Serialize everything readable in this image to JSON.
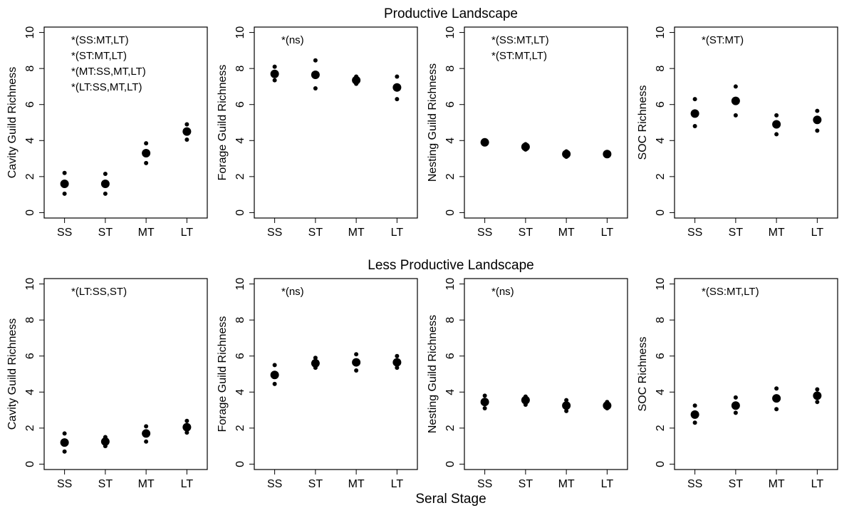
{
  "figure": {
    "row_titles": [
      "Productive Landscape",
      "Less Productive Landscape"
    ],
    "x_title": "Seral Stage"
  },
  "chart_data": [
    {
      "type": "scatter",
      "row": 0,
      "col": 0,
      "ylabel": "Cavity Guild Richness",
      "categories": [
        "SS",
        "ST",
        "MT",
        "LT"
      ],
      "ylim": [
        0,
        10
      ],
      "yticks": [
        0,
        2,
        4,
        6,
        8,
        10
      ],
      "annotations": [
        "*(SS:MT,LT)",
        "*(ST:MT,LT)",
        "*(MT:SS,MT,LT)",
        "*(LT:SS,MT,LT)"
      ],
      "series": [
        {
          "stat": "mean",
          "values": [
            1.6,
            1.6,
            3.3,
            4.5
          ]
        },
        {
          "stat": "upper",
          "values": [
            2.2,
            2.15,
            3.85,
            4.9
          ]
        },
        {
          "stat": "lower",
          "values": [
            1.05,
            1.05,
            2.75,
            4.05
          ]
        }
      ]
    },
    {
      "type": "scatter",
      "row": 0,
      "col": 1,
      "ylabel": "Forage Guild Richness",
      "categories": [
        "SS",
        "ST",
        "MT",
        "LT"
      ],
      "ylim": [
        0,
        10
      ],
      "yticks": [
        0,
        2,
        4,
        6,
        8,
        10
      ],
      "annotations": [
        "*(ns)"
      ],
      "series": [
        {
          "stat": "mean",
          "values": [
            7.7,
            7.65,
            7.35,
            6.95
          ]
        },
        {
          "stat": "upper",
          "values": [
            8.1,
            8.45,
            7.55,
            7.55
          ]
        },
        {
          "stat": "lower",
          "values": [
            7.35,
            6.9,
            7.15,
            6.3
          ]
        }
      ]
    },
    {
      "type": "scatter",
      "row": 0,
      "col": 2,
      "ylabel": "Nesting Guild Richness",
      "categories": [
        "SS",
        "ST",
        "MT",
        "LT"
      ],
      "ylim": [
        0,
        10
      ],
      "yticks": [
        0,
        2,
        4,
        6,
        8,
        10
      ],
      "annotations": [
        "*(SS:MT,LT)",
        "*(ST:MT,LT)"
      ],
      "series": [
        {
          "stat": "mean",
          "values": [
            3.9,
            3.65,
            3.25,
            3.25
          ]
        },
        {
          "stat": "upper",
          "values": [
            4.0,
            3.8,
            3.4,
            3.35
          ]
        },
        {
          "stat": "lower",
          "values": [
            3.8,
            3.5,
            3.1,
            3.15
          ]
        }
      ]
    },
    {
      "type": "scatter",
      "row": 0,
      "col": 3,
      "ylabel": "SOC Richness",
      "categories": [
        "SS",
        "ST",
        "MT",
        "LT"
      ],
      "ylim": [
        0,
        10
      ],
      "yticks": [
        0,
        2,
        4,
        6,
        8,
        10
      ],
      "annotations": [
        "*(ST:MT)"
      ],
      "series": [
        {
          "stat": "mean",
          "values": [
            5.5,
            6.2,
            4.9,
            5.15
          ]
        },
        {
          "stat": "upper",
          "values": [
            6.3,
            7.0,
            5.4,
            5.65
          ]
        },
        {
          "stat": "lower",
          "values": [
            4.8,
            5.4,
            4.35,
            4.55
          ]
        }
      ]
    },
    {
      "type": "scatter",
      "row": 1,
      "col": 0,
      "ylabel": "Cavity Guild Richness",
      "categories": [
        "SS",
        "ST",
        "MT",
        "LT"
      ],
      "ylim": [
        0,
        10
      ],
      "yticks": [
        0,
        2,
        4,
        6,
        8,
        10
      ],
      "annotations": [
        "*(LT:SS,ST)"
      ],
      "series": [
        {
          "stat": "mean",
          "values": [
            1.2,
            1.25,
            1.7,
            2.05
          ]
        },
        {
          "stat": "upper",
          "values": [
            1.7,
            1.5,
            2.1,
            2.4
          ]
        },
        {
          "stat": "lower",
          "values": [
            0.7,
            1.0,
            1.25,
            1.75
          ]
        }
      ]
    },
    {
      "type": "scatter",
      "row": 1,
      "col": 1,
      "ylabel": "Forage Guild Richness",
      "categories": [
        "SS",
        "ST",
        "MT",
        "LT"
      ],
      "ylim": [
        0,
        10
      ],
      "yticks": [
        0,
        2,
        4,
        6,
        8,
        10
      ],
      "annotations": [
        "*(ns)"
      ],
      "series": [
        {
          "stat": "mean",
          "values": [
            4.95,
            5.6,
            5.65,
            5.65
          ]
        },
        {
          "stat": "upper",
          "values": [
            5.5,
            5.9,
            6.1,
            6.0
          ]
        },
        {
          "stat": "lower",
          "values": [
            4.45,
            5.35,
            5.2,
            5.35
          ]
        }
      ]
    },
    {
      "type": "scatter",
      "row": 1,
      "col": 2,
      "ylabel": "Nesting Guild Richness",
      "categories": [
        "SS",
        "ST",
        "MT",
        "LT"
      ],
      "ylim": [
        0,
        10
      ],
      "yticks": [
        0,
        2,
        4,
        6,
        8,
        10
      ],
      "annotations": [
        "*(ns)"
      ],
      "series": [
        {
          "stat": "mean",
          "values": [
            3.45,
            3.55,
            3.25,
            3.25
          ]
        },
        {
          "stat": "upper",
          "values": [
            3.8,
            3.75,
            3.55,
            3.45
          ]
        },
        {
          "stat": "lower",
          "values": [
            3.1,
            3.3,
            2.95,
            3.1
          ]
        }
      ]
    },
    {
      "type": "scatter",
      "row": 1,
      "col": 3,
      "ylabel": "SOC Richness",
      "categories": [
        "SS",
        "ST",
        "MT",
        "LT"
      ],
      "ylim": [
        0,
        10
      ],
      "yticks": [
        0,
        2,
        4,
        6,
        8,
        10
      ],
      "annotations": [
        "*(SS:MT,LT)"
      ],
      "series": [
        {
          "stat": "mean",
          "values": [
            2.75,
            3.25,
            3.65,
            3.8
          ]
        },
        {
          "stat": "upper",
          "values": [
            3.25,
            3.7,
            4.2,
            4.15
          ]
        },
        {
          "stat": "lower",
          "values": [
            2.3,
            2.85,
            3.05,
            3.45
          ]
        }
      ]
    }
  ]
}
